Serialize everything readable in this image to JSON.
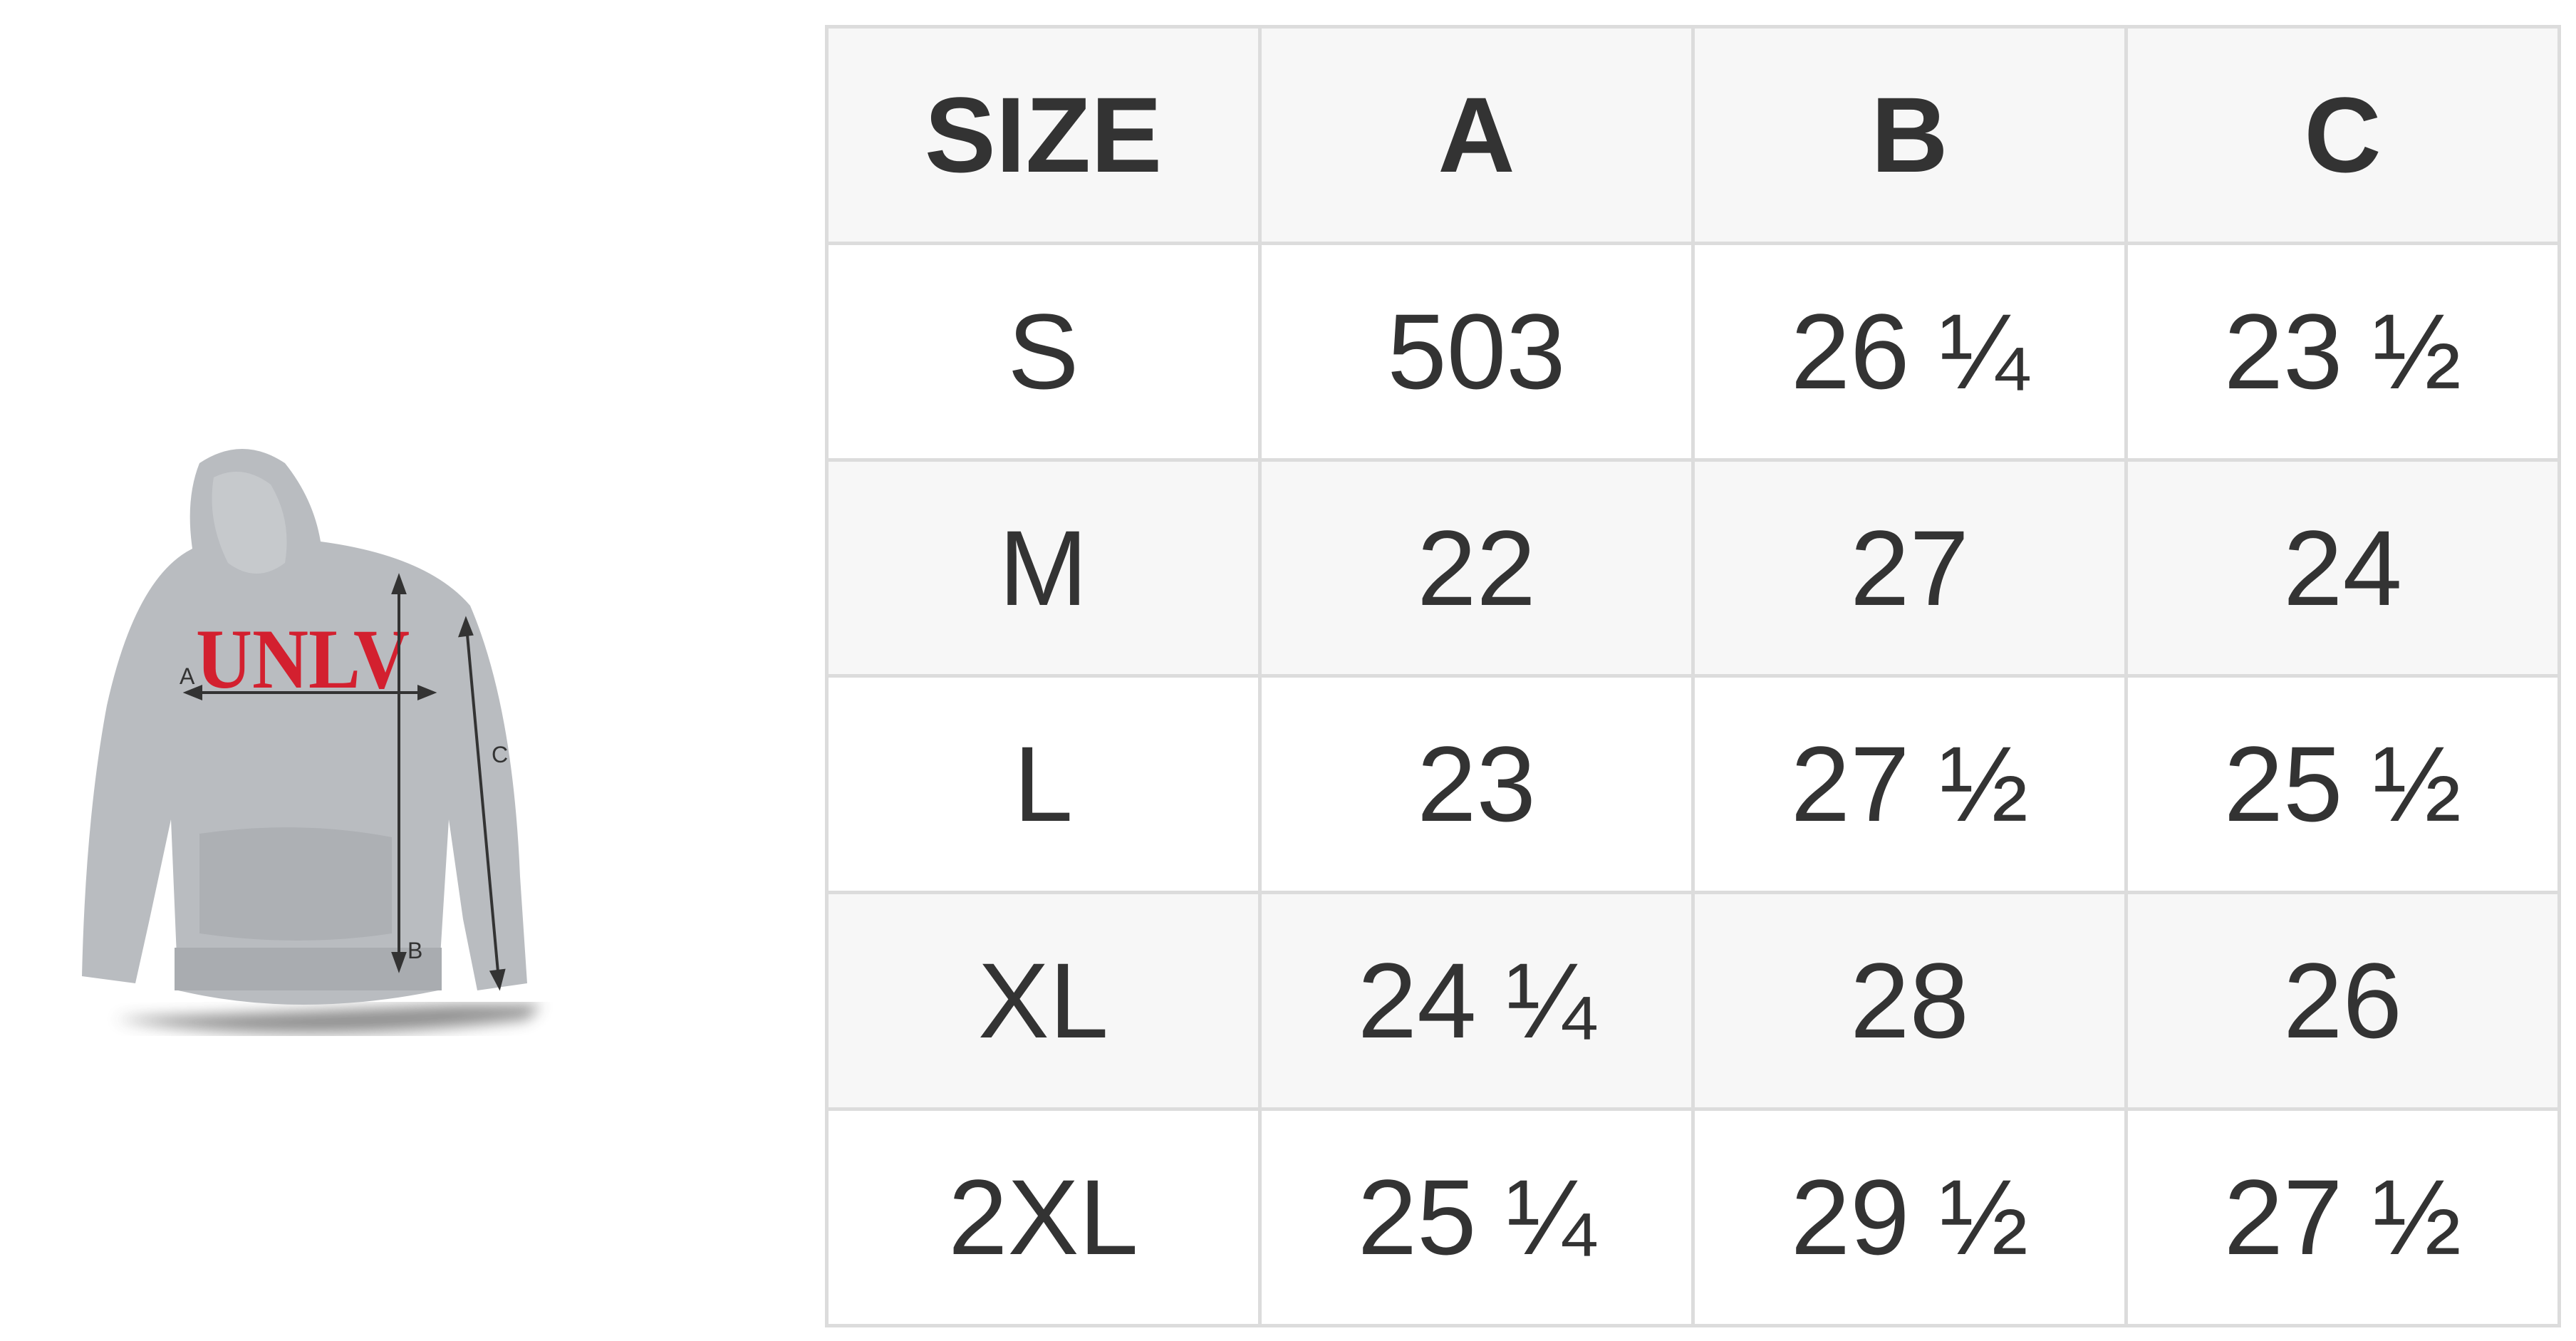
{
  "image": {
    "graphic_text": "UNLV",
    "measure_labels": [
      "A",
      "B",
      "C"
    ],
    "colors": {
      "fabric": "#b9bcc0",
      "print": "#d3202f",
      "arrow": "#333333"
    }
  },
  "table": {
    "headers": [
      "SIZE",
      "A",
      "B",
      "C"
    ],
    "rows": [
      [
        "S",
        "503",
        "26 ¼",
        "23 ½"
      ],
      [
        "M",
        "22",
        "27",
        "24"
      ],
      [
        "L",
        "23",
        "27 ½",
        "25 ½"
      ],
      [
        "XL",
        "24 ¼",
        "28",
        "26"
      ],
      [
        "2XL",
        "25 ¼",
        "29 ½",
        "27 ½"
      ]
    ]
  }
}
